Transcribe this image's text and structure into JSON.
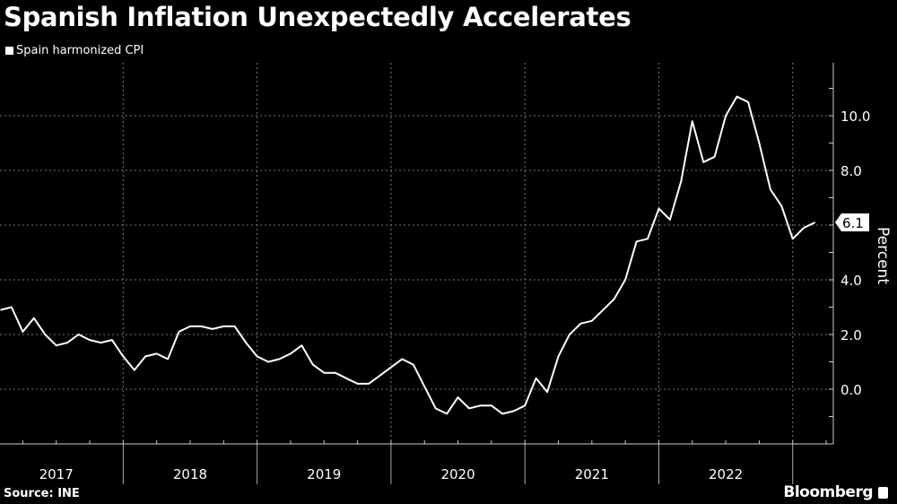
{
  "title": "Spanish Inflation Unexpectedly Accelerates",
  "source": "Source: INE",
  "brand": "Bloomberg",
  "colors": {
    "background": "#000000",
    "line": "#ffffff",
    "grid": "#888888"
  },
  "chart_data": {
    "type": "line",
    "title": "Spanish Inflation Unexpectedly Accelerates",
    "ylabel": "Percent",
    "xlabel": "",
    "legend": "top-left",
    "grid": true,
    "y_axis_side": "right",
    "ylim": [
      -2,
      12
    ],
    "y_ticks": [
      "0.0",
      "2.0",
      "4.0",
      "8.0",
      "10.0"
    ],
    "x_tick_labels": [
      "2017",
      "2018",
      "2019",
      "2020",
      "2021",
      "2022"
    ],
    "last_value_label": "6.1",
    "x_start": "2017-01",
    "x_end": "2023-02",
    "frequency": "monthly",
    "series": [
      {
        "name": "Spain harmonized CPI",
        "values": [
          2.9,
          3.0,
          2.1,
          2.6,
          2.0,
          1.6,
          1.7,
          2.0,
          1.8,
          1.7,
          1.8,
          1.2,
          0.7,
          1.2,
          1.3,
          1.1,
          2.1,
          2.3,
          2.3,
          2.2,
          2.3,
          2.3,
          1.7,
          1.2,
          1.0,
          1.1,
          1.3,
          1.6,
          0.9,
          0.6,
          0.6,
          0.4,
          0.2,
          0.2,
          0.5,
          0.8,
          1.1,
          0.9,
          0.1,
          -0.7,
          -0.9,
          -0.3,
          -0.7,
          -0.6,
          -0.6,
          -0.9,
          -0.8,
          -0.6,
          0.4,
          -0.1,
          1.2,
          2.0,
          2.4,
          2.5,
          2.9,
          3.3,
          4.0,
          5.4,
          5.5,
          6.6,
          6.2,
          7.6,
          9.8,
          8.3,
          8.5,
          10.0,
          10.7,
          10.5,
          9.0,
          7.3,
          6.7,
          5.5,
          5.9,
          6.1
        ]
      }
    ]
  }
}
